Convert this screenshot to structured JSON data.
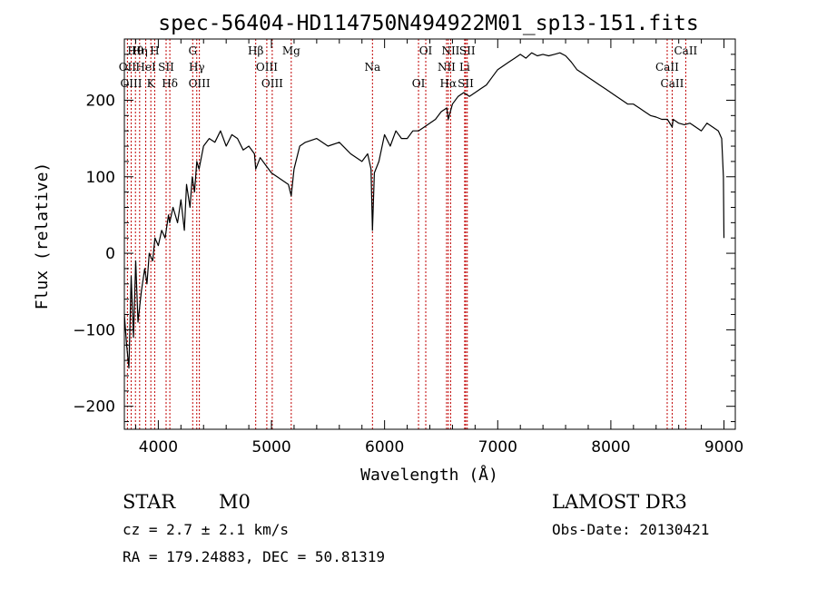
{
  "chart_data": {
    "type": "line",
    "title": "spec-56404-HD114750N494922M01_sp13-151.fits",
    "xlabel": "Wavelength (Å)",
    "ylabel": "Flux (relative)",
    "xlim": [
      3700,
      9100
    ],
    "ylim": [
      -230,
      280
    ],
    "x_ticks": [
      4000,
      5000,
      6000,
      7000,
      8000,
      9000
    ],
    "x_tick_labels": [
      "4000",
      "5000",
      "6000",
      "7000",
      "8000",
      "9000"
    ],
    "y_ticks": [
      -200,
      -100,
      0,
      100,
      200
    ],
    "y_tick_labels": [
      "−200",
      "−100",
      "0",
      "100",
      "200"
    ],
    "series": [
      {
        "name": "flux",
        "x": [
          3700,
          3720,
          3740,
          3760,
          3780,
          3800,
          3820,
          3850,
          3880,
          3900,
          3920,
          3950,
          3970,
          4000,
          4030,
          4060,
          4090,
          4100,
          4130,
          4170,
          4200,
          4230,
          4250,
          4280,
          4300,
          4320,
          4340,
          4360,
          4400,
          4450,
          4500,
          4550,
          4600,
          4650,
          4700,
          4750,
          4800,
          4850,
          4861,
          4900,
          4950,
          5000,
          5050,
          5100,
          5150,
          5175,
          5200,
          5250,
          5300,
          5400,
          5500,
          5600,
          5700,
          5800,
          5850,
          5880,
          5893,
          5910,
          5950,
          6000,
          6050,
          6100,
          6150,
          6200,
          6250,
          6300,
          6350,
          6400,
          6450,
          6500,
          6550,
          6563,
          6600,
          6650,
          6700,
          6750,
          6800,
          6850,
          6900,
          6950,
          7000,
          7050,
          7100,
          7150,
          7200,
          7250,
          7300,
          7350,
          7400,
          7450,
          7500,
          7550,
          7600,
          7650,
          7700,
          7750,
          7800,
          7850,
          7900,
          7950,
          8000,
          8050,
          8100,
          8150,
          8200,
          8250,
          8300,
          8350,
          8400,
          8450,
          8500,
          8542,
          8550,
          8600,
          8650,
          8700,
          8750,
          8800,
          8850,
          8900,
          8950,
          8980,
          8995,
          9000
        ],
        "y": [
          -80,
          -120,
          -150,
          -30,
          -110,
          -10,
          -90,
          -50,
          -20,
          -40,
          0,
          -10,
          20,
          10,
          30,
          20,
          50,
          40,
          60,
          40,
          70,
          30,
          90,
          60,
          100,
          80,
          120,
          110,
          140,
          150,
          145,
          160,
          140,
          155,
          150,
          135,
          140,
          130,
          110,
          125,
          115,
          105,
          100,
          95,
          90,
          75,
          110,
          140,
          145,
          150,
          140,
          145,
          130,
          120,
          130,
          110,
          30,
          105,
          120,
          155,
          140,
          160,
          150,
          150,
          160,
          160,
          165,
          170,
          175,
          185,
          190,
          175,
          195,
          205,
          210,
          205,
          210,
          215,
          220,
          230,
          240,
          245,
          250,
          255,
          260,
          255,
          262,
          258,
          260,
          258,
          260,
          262,
          258,
          250,
          240,
          235,
          230,
          225,
          220,
          215,
          210,
          205,
          200,
          195,
          195,
          190,
          185,
          180,
          178,
          175,
          175,
          165,
          175,
          170,
          168,
          170,
          165,
          160,
          170,
          165,
          160,
          150,
          100,
          20
        ],
        "color": "#000000"
      }
    ],
    "line_markers": [
      {
        "label": "Hθ",
        "wavelength": 3798
      },
      {
        "label": "OII",
        "wavelength": 3727
      },
      {
        "label": "OIII",
        "wavelength": 3760
      },
      {
        "label": "Hη",
        "wavelength": 3835
      },
      {
        "label": "HeI",
        "wavelength": 3889
      },
      {
        "label": "K",
        "wavelength": 3934
      },
      {
        "label": "H",
        "wavelength": 3968
      },
      {
        "label": "SII",
        "wavelength": 4069
      },
      {
        "label": "Hδ",
        "wavelength": 4102
      },
      {
        "label": "G",
        "wavelength": 4304
      },
      {
        "label": "Hγ",
        "wavelength": 4340
      },
      {
        "label": "OIII",
        "wavelength": 4363
      },
      {
        "label": "Hβ",
        "wavelength": 4861
      },
      {
        "label": "OIII",
        "wavelength": 4959
      },
      {
        "label": "OIII",
        "wavelength": 5007
      },
      {
        "label": "Mg",
        "wavelength": 5175
      },
      {
        "label": "Na",
        "wavelength": 5893
      },
      {
        "label": "OI",
        "wavelength": 6300
      },
      {
        "label": "OI",
        "wavelength": 6364
      },
      {
        "label": "NII",
        "wavelength": 6548
      },
      {
        "label": "Hα",
        "wavelength": 6563
      },
      {
        "label": "NII",
        "wavelength": 6584
      },
      {
        "label": "Li",
        "wavelength": 6708
      },
      {
        "label": "SII",
        "wavelength": 6717
      },
      {
        "label": "SII",
        "wavelength": 6731
      },
      {
        "label": "CaII",
        "wavelength": 8498
      },
      {
        "label": "CaII",
        "wavelength": 8542
      },
      {
        "label": "CaII",
        "wavelength": 8662
      }
    ],
    "marker_color": "#c00000"
  },
  "info": {
    "object_class": "STAR",
    "subclass": "M0",
    "survey": "LAMOST DR3",
    "cz": "cz = 2.7 ± 2.1 km/s",
    "obs_date": "Obs-Date: 20130421",
    "coords": "RA = 179.24883, DEC =  50.81319"
  }
}
